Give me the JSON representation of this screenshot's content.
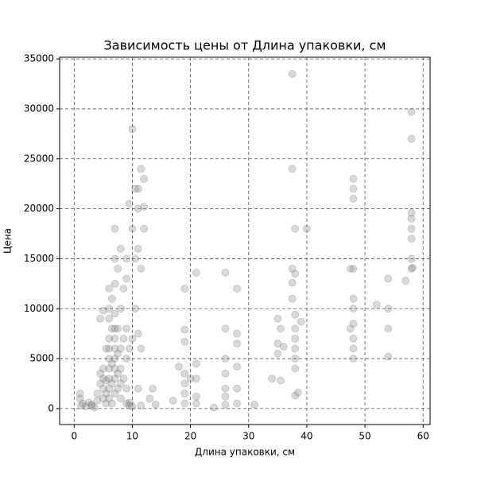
{
  "chart_data": {
    "type": "scatter",
    "title": "Зависимость цены от Длина упаковки, см",
    "x_label": "Длина упаковки, см",
    "y_label": "Цена",
    "color": "#808080",
    "opacity": 0.3,
    "grid": true,
    "xlim": [
      -2.5,
      61.2
    ],
    "ylim": [
      -1600,
      35170
    ],
    "xticks": [
      0,
      10,
      20,
      30,
      40,
      50,
      60
    ],
    "yticks": [
      0,
      5000,
      10000,
      15000,
      20000,
      25000,
      30000,
      35000
    ],
    "x": [
      1,
      1,
      1.2,
      1.5,
      2,
      2.5,
      3,
      3,
      3.5,
      4,
      4,
      4.5,
      4.5,
      4.5,
      5,
      5,
      5,
      5,
      5,
      5.5,
      5.5,
      5.5,
      5.5,
      6,
      6,
      6,
      6,
      6,
      6,
      6,
      6,
      6,
      6,
      6.5,
      6.5,
      6.5,
      6.5,
      6.5,
      7,
      7,
      7,
      7,
      7,
      7,
      7,
      7,
      7,
      7,
      7,
      7.5,
      7.5,
      7.5,
      7.5,
      7.5,
      8,
      8,
      8,
      8,
      8,
      8,
      8.5,
      8.5,
      8.5,
      9,
      9,
      9,
      9,
      9,
      9,
      9.5,
      9.5,
      9.5,
      9.5,
      10,
      10,
      10,
      10,
      10.5,
      10.5,
      10.5,
      11,
      11,
      11,
      11,
      11,
      11.5,
      11.5,
      11.5,
      11.5,
      12,
      12,
      12,
      13,
      13.5,
      14,
      17,
      18,
      19,
      19,
      19,
      19,
      19,
      19,
      19,
      20,
      21,
      21,
      21,
      21,
      21,
      24,
      26,
      26,
      26,
      26,
      26,
      26,
      26,
      28,
      28,
      28,
      28,
      28,
      28,
      31,
      34,
      35,
      35,
      35,
      35.5,
      35.5,
      36,
      37.5,
      37.5,
      37.5,
      37.5,
      37.5,
      38,
      38,
      38,
      38,
      38,
      38,
      38,
      38,
      38,
      38.5,
      39,
      40,
      47.5,
      47.5,
      48,
      48,
      48,
      48,
      48,
      48,
      48,
      48,
      48,
      48,
      52,
      54,
      54,
      54,
      54,
      57,
      58,
      58,
      58,
      58,
      58,
      58,
      58,
      58,
      58.2
    ],
    "values": [
      1500,
      1000,
      300,
      500,
      200,
      600,
      400,
      300,
      100,
      800,
      1500,
      2500,
      3500,
      9000,
      1000,
      2000,
      3000,
      4000,
      9800,
      500,
      1500,
      2800,
      6000,
      1000,
      2000,
      3000,
      4000,
      5000,
      6000,
      7000,
      9000,
      10000,
      12000,
      500,
      2500,
      4500,
      8000,
      11000,
      1500,
      3000,
      4000,
      5000,
      6000,
      7000,
      8000,
      9500,
      12500,
      15000,
      18000,
      2000,
      3500,
      5500,
      8000,
      14000,
      1000,
      2500,
      4000,
      6000,
      10000,
      16000,
      3000,
      7000,
      12000,
      500,
      2000,
      5000,
      8000,
      13000,
      15000,
      300,
      600,
      6000,
      20500,
      200,
      7000,
      18000,
      28000,
      10000,
      15000,
      22000,
      2000,
      7500,
      16000,
      20000,
      22000,
      6000,
      14000,
      24000,
      300,
      18000,
      20200,
      23000,
      1000,
      2000,
      400,
      800,
      4200,
      12000,
      7900,
      6700,
      3500,
      2500,
      1500,
      500,
      3000,
      13600,
      4500,
      3000,
      1200,
      500,
      100,
      13600,
      8000,
      5000,
      3500,
      2000,
      1200,
      400,
      12000,
      7500,
      6500,
      4200,
      2000,
      500,
      400,
      3000,
      9000,
      6500,
      5500,
      8000,
      2800,
      6200,
      33500,
      24000,
      14000,
      12600,
      11000,
      18000,
      13500,
      9400,
      8000,
      7000,
      6000,
      5000,
      4000,
      1300,
      1600,
      8700,
      18000,
      14000,
      8000,
      23000,
      22000,
      21000,
      14000,
      11000,
      10000,
      8500,
      7000,
      6000,
      5000,
      10400,
      13000,
      10000,
      8000,
      5200,
      12800,
      29700,
      27000,
      19600,
      19000,
      18000,
      17000,
      15000,
      14000,
      14100
    ]
  }
}
